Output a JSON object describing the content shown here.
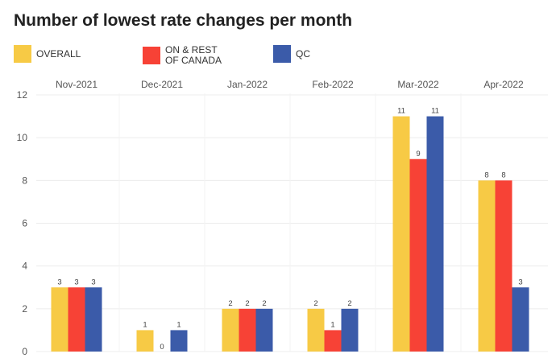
{
  "chart_data": {
    "type": "bar",
    "title": "Number of lowest rate changes per month",
    "categories": [
      "Nov-2021",
      "Dec-2021",
      "Jan-2022",
      "Feb-2022",
      "Mar-2022",
      "Apr-2022"
    ],
    "series": [
      {
        "name": "OVERALL",
        "color": "#f7ca45",
        "values": [
          3,
          1,
          2,
          2,
          11,
          8
        ]
      },
      {
        "name": "ON & REST\nOF CANADA",
        "color": "#f74236",
        "values": [
          3,
          0,
          2,
          1,
          9,
          8
        ]
      },
      {
        "name": "QC",
        "color": "#3b5ba9",
        "values": [
          3,
          1,
          2,
          2,
          11,
          3
        ]
      }
    ],
    "yticks": [
      0,
      2,
      4,
      6,
      8,
      10,
      12
    ],
    "ylim": [
      0,
      12
    ],
    "xlabel": "",
    "ylabel": "",
    "grid": true,
    "legend_position": "top-left",
    "category_labels_position": "top"
  }
}
